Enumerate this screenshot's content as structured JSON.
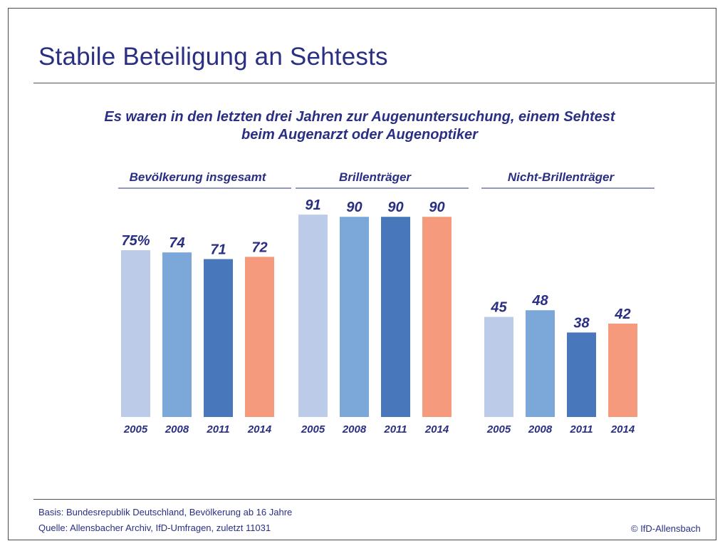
{
  "header": {
    "title": "Stabile Beteiligung an Sehtests"
  },
  "footer": {
    "basis": "Basis: Bundesrepublik Deutschland, Bevölkerung ab 16 Jahre",
    "quelle": "Quelle: Allensbacher Archiv, IfD-Umfragen, zuletzt 11031",
    "copyright": "© IfD-Allensbach"
  },
  "colors": {
    "text": "#2a2f84",
    "series": [
      "#bccbe7",
      "#7ba7d9",
      "#4878bb",
      "#f59a7c"
    ]
  },
  "chart_data": {
    "type": "bar",
    "title": "Es waren in den letzten drei Jahren zur Augenuntersuchung, einem Sehtest beim Augenarzt oder Augenoptiker",
    "title_lines": [
      "Es waren in den letzten drei Jahren zur Augenuntersuchung, einem Sehtest",
      "beim Augenarzt oder Augenoptiker"
    ],
    "ylabel": "",
    "unit": "%",
    "ylim": [
      0,
      100
    ],
    "grid": false,
    "categories": [
      "2005",
      "2008",
      "2011",
      "2014"
    ],
    "groups": [
      {
        "name": "Bevölkerung insgesamt",
        "values": [
          75,
          74,
          71,
          72
        ],
        "labels": [
          "75%",
          "74",
          "71",
          "72"
        ]
      },
      {
        "name": "Brillenträger",
        "values": [
          91,
          90,
          90,
          90
        ],
        "labels": [
          "91",
          "90",
          "90",
          "90"
        ]
      },
      {
        "name": "Nicht-Brillenträger",
        "values": [
          45,
          48,
          38,
          42
        ],
        "labels": [
          "45",
          "48",
          "38",
          "42"
        ]
      }
    ]
  }
}
